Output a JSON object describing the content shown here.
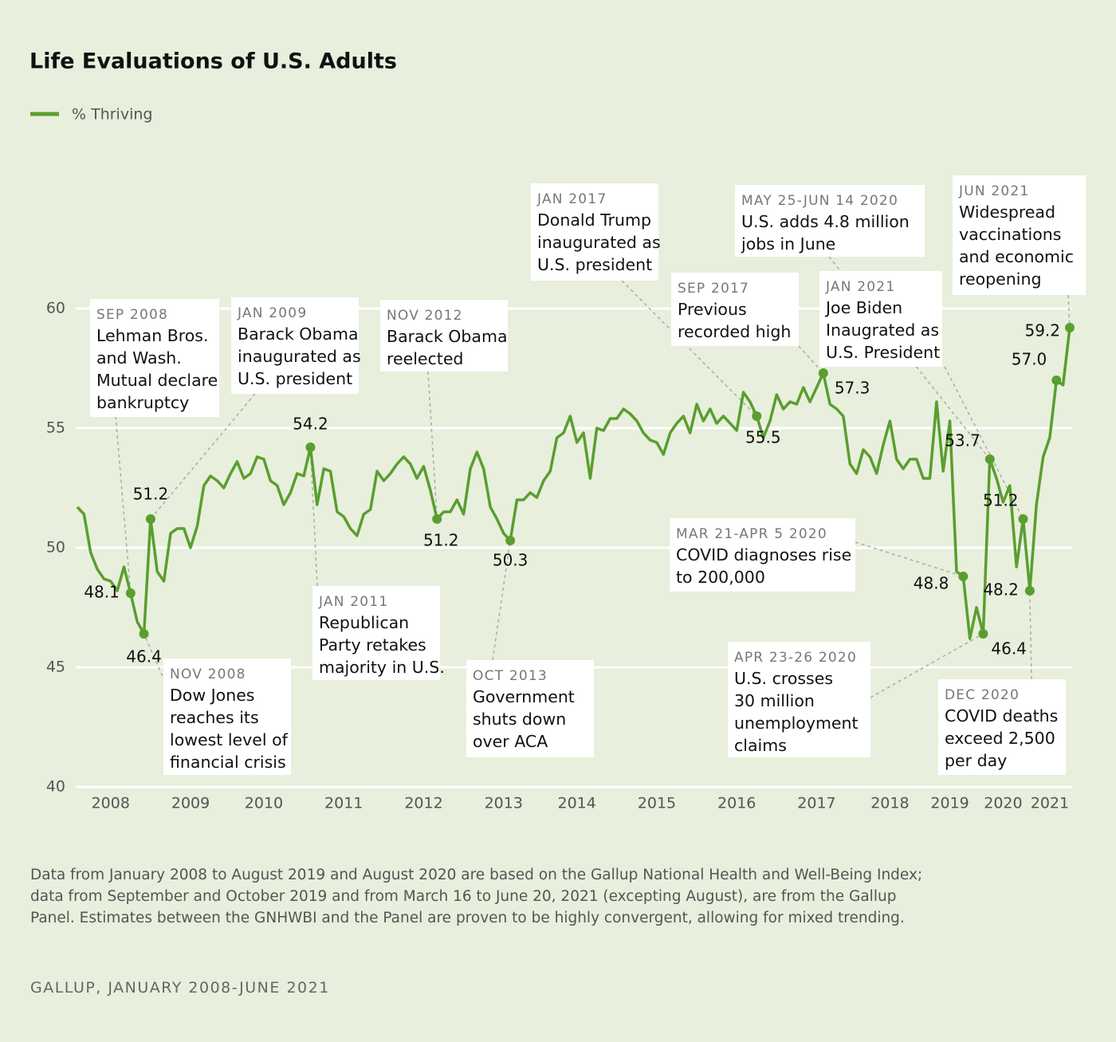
{
  "chart_data": {
    "type": "line",
    "title": "Life Evaluations of U.S. Adults",
    "note": "Data from January 2008 to August 2019 and August 2020 are based on the Gallup National Health and Well-Being Index; data from September and October 2019 and from March 16 to June 20, 2021 (excepting August), are from the Gallup Panel. Estimates between the GNHWBI and the Panel are proven to be highly convergent, allowing for mixed trending.",
    "source": "GALLUP, JANUARY 2008-JUNE 2021",
    "ylim": [
      40,
      60
    ],
    "yticks": [
      40,
      45,
      50,
      55,
      60
    ],
    "grid": true,
    "legend": "top-left",
    "categories": [
      null,
      null,
      null,
      null,
      null,
      "2008",
      null,
      null,
      null,
      null,
      null,
      null,
      null,
      null,
      null,
      null,
      null,
      "2009",
      null,
      null,
      null,
      null,
      null,
      null,
      null,
      null,
      null,
      null,
      "2010",
      null,
      null,
      null,
      null,
      null,
      null,
      null,
      null,
      null,
      null,
      null,
      "2011",
      null,
      null,
      null,
      null,
      null,
      null,
      null,
      null,
      null,
      null,
      null,
      "2012",
      null,
      null,
      null,
      null,
      null,
      null,
      null,
      null,
      null,
      null,
      null,
      "2013",
      null,
      null,
      null,
      null,
      null,
      null,
      null,
      null,
      null,
      null,
      "2014",
      null,
      null,
      null,
      null,
      null,
      null,
      null,
      null,
      null,
      null,
      null,
      "2015",
      null,
      null,
      null,
      null,
      null,
      null,
      null,
      null,
      null,
      null,
      null,
      "2016",
      null,
      null,
      null,
      null,
      null,
      null,
      null,
      null,
      null,
      null,
      null,
      "2017",
      null,
      null,
      null,
      null,
      null,
      null,
      null,
      null,
      null,
      null,
      "2018",
      null,
      null,
      null,
      null,
      null,
      null,
      null,
      null,
      "2019",
      null,
      null,
      null,
      null,
      null,
      null,
      null,
      "2020",
      null,
      null,
      null,
      null,
      null,
      null,
      "2021",
      null,
      null,
      null
    ],
    "series": [
      {
        "name": "% Thriving",
        "color": "#5a9e2f",
        "values": [
          51.7,
          51.4,
          49.8,
          49.1,
          48.7,
          48.6,
          48.2,
          49.2,
          48.1,
          46.9,
          46.4,
          51.2,
          49.0,
          48.6,
          50.6,
          50.8,
          50.8,
          50.0,
          50.9,
          52.6,
          53.0,
          52.8,
          52.5,
          53.1,
          53.6,
          52.9,
          53.1,
          53.8,
          53.7,
          52.8,
          52.6,
          51.8,
          52.3,
          53.1,
          53.0,
          54.2,
          51.8,
          53.3,
          53.2,
          51.5,
          51.3,
          50.8,
          50.5,
          51.4,
          51.6,
          53.2,
          52.8,
          53.1,
          53.5,
          53.8,
          53.5,
          52.9,
          53.4,
          52.4,
          51.2,
          51.5,
          51.5,
          52.0,
          51.4,
          53.3,
          54.0,
          53.3,
          51.7,
          51.2,
          50.6,
          50.3,
          52.0,
          52.0,
          52.3,
          52.1,
          52.8,
          53.2,
          54.6,
          54.8,
          55.5,
          54.4,
          54.8,
          52.9,
          55.0,
          54.9,
          55.4,
          55.4,
          55.8,
          55.6,
          55.3,
          54.8,
          54.5,
          54.4,
          53.9,
          54.8,
          55.2,
          55.5,
          54.8,
          56.0,
          55.3,
          55.8,
          55.2,
          55.5,
          55.2,
          54.9,
          56.5,
          56.1,
          55.5,
          54.6,
          55.3,
          56.4,
          55.8,
          56.1,
          56.0,
          56.7,
          56.1,
          56.7,
          57.3,
          56.0,
          55.8,
          55.5,
          53.5,
          53.1,
          54.1,
          53.8,
          53.1,
          54.3,
          55.3,
          53.7,
          53.3,
          53.7,
          53.7,
          52.9,
          52.9,
          56.1,
          53.2,
          55.3,
          49.0,
          48.8,
          46.2,
          47.5,
          46.4,
          53.7,
          52.9,
          51.9,
          52.6,
          49.2,
          51.2,
          48.2,
          51.8,
          53.8,
          54.6,
          57.0,
          56.8,
          59.2
        ],
        "value_labels": [
          null,
          null,
          null,
          null,
          null,
          null,
          null,
          null,
          "48.1",
          null,
          "46.4",
          "51.2",
          null,
          null,
          null,
          null,
          null,
          null,
          null,
          null,
          null,
          null,
          null,
          null,
          null,
          null,
          null,
          null,
          null,
          null,
          null,
          null,
          null,
          null,
          null,
          "54.2",
          null,
          null,
          null,
          null,
          null,
          null,
          null,
          null,
          null,
          null,
          null,
          null,
          null,
          null,
          null,
          null,
          null,
          null,
          "51.2",
          null,
          null,
          null,
          null,
          null,
          null,
          null,
          null,
          null,
          null,
          "50.3",
          null,
          null,
          null,
          null,
          null,
          null,
          null,
          null,
          null,
          null,
          null,
          null,
          null,
          null,
          null,
          null,
          null,
          null,
          null,
          null,
          null,
          null,
          null,
          null,
          null,
          null,
          null,
          null,
          null,
          null,
          null,
          null,
          null,
          null,
          null,
          null,
          "55.5",
          null,
          null,
          null,
          null,
          null,
          null,
          null,
          null,
          null,
          "57.3",
          null,
          null,
          null,
          null,
          null,
          null,
          null,
          null,
          null,
          null,
          null,
          null,
          null,
          null,
          null,
          null,
          null,
          null,
          null,
          null,
          "48.8",
          null,
          null,
          "46.4",
          "53.7",
          null,
          null,
          null,
          null,
          "51.2",
          "48.2",
          null,
          null,
          null,
          "57.0",
          null,
          "59.2"
        ],
        "annotations": [
          null,
          null,
          null,
          null,
          null,
          null,
          null,
          null,
          {
            "date": "SEP 2008",
            "lines": [
              "Lehman Bros.",
              "and Wash.",
              "Mutual declare",
              "bankruptcy"
            ]
          },
          null,
          {
            "date": "NOV 2008",
            "lines": [
              "Dow Jones",
              "reaches its",
              "lowest level of",
              "financial crisis"
            ]
          },
          {
            "date": "JAN 2009",
            "lines": [
              "Barack Obama",
              "inaugurated as",
              "U.S. president"
            ]
          },
          null,
          null,
          null,
          null,
          null,
          null,
          null,
          null,
          null,
          null,
          null,
          null,
          null,
          null,
          null,
          null,
          null,
          null,
          null,
          null,
          null,
          null,
          null,
          {
            "date": "JAN 2011",
            "lines": [
              "Republican",
              "Party retakes",
              "majority in U.S."
            ]
          },
          null,
          null,
          null,
          null,
          null,
          null,
          null,
          null,
          null,
          null,
          null,
          null,
          null,
          null,
          null,
          null,
          null,
          null,
          {
            "date": "NOV 2012",
            "lines": [
              "Barack Obama",
              "reelected"
            ]
          },
          null,
          null,
          null,
          null,
          null,
          null,
          null,
          null,
          null,
          null,
          {
            "date": "OCT 2013",
            "lines": [
              "Government",
              "shuts down",
              "over ACA"
            ]
          },
          null,
          null,
          null,
          null,
          null,
          null,
          null,
          null,
          null,
          null,
          null,
          null,
          null,
          null,
          null,
          null,
          null,
          null,
          null,
          null,
          null,
          null,
          null,
          null,
          null,
          null,
          null,
          null,
          null,
          null,
          null,
          null,
          null,
          null,
          null,
          null,
          {
            "date": "JAN 2017",
            "lines": [
              "Donald Trump",
              "inaugurated as",
              "U.S. president"
            ]
          },
          null,
          null,
          null,
          null,
          null,
          null,
          null,
          null,
          null,
          {
            "date": "SEP 2017",
            "lines": [
              "Previous",
              "recorded high"
            ]
          },
          null,
          null,
          null,
          null,
          null,
          null,
          null,
          null,
          null,
          null,
          null,
          null,
          null,
          null,
          null,
          null,
          null,
          null,
          null,
          null,
          {
            "date": "MAR 21-APR 5 2020",
            "lines": [
              "COVID diagnoses rise",
              "to 200,000"
            ]
          },
          null,
          null,
          {
            "date": "APR 23-26 2020",
            "lines": [
              "U.S. crosses",
              "30 million",
              "unemployment",
              "claims"
            ]
          },
          {
            "date": "MAY 25-JUN 14 2020",
            "lines": [
              "U.S. adds 4.8 million",
              "jobs in June"
            ]
          },
          null,
          null,
          null,
          null,
          {
            "date": "JAN 2021",
            "lines": [
              "Joe Biden",
              "Inaugrated as",
              "U.S. President"
            ]
          },
          {
            "date": "DEC 2020",
            "lines": [
              "COVID deaths",
              "exceed 2,500",
              "per day"
            ]
          },
          null,
          null,
          null,
          null,
          null,
          {
            "date": "JUN 2021",
            "lines": [
              "Widespread",
              "vaccinations",
              "and economic",
              "reopening"
            ]
          }
        ]
      }
    ]
  }
}
